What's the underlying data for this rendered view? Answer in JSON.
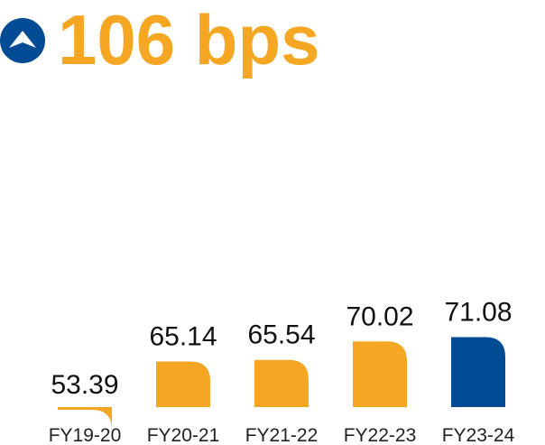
{
  "headline": {
    "text": "106 bps",
    "icon": "arrow-up-icon",
    "color": "#f5a623",
    "icon_color": "#004b93"
  },
  "chart_data": {
    "type": "bar",
    "categories": [
      "FY19-20",
      "FY20-21",
      "FY21-22",
      "FY22-23",
      "FY23-24"
    ],
    "values": [
      53.39,
      65.14,
      65.54,
      70.02,
      71.08
    ],
    "value_labels": [
      "53.39",
      "65.14",
      "65.54",
      "70.02",
      "71.08"
    ],
    "title": "",
    "xlabel": "",
    "ylabel": "",
    "grid": false,
    "legend": "none",
    "bar_colors": [
      "#f5a623",
      "#f5a623",
      "#f5a623",
      "#f5a623",
      "#004b93"
    ]
  }
}
